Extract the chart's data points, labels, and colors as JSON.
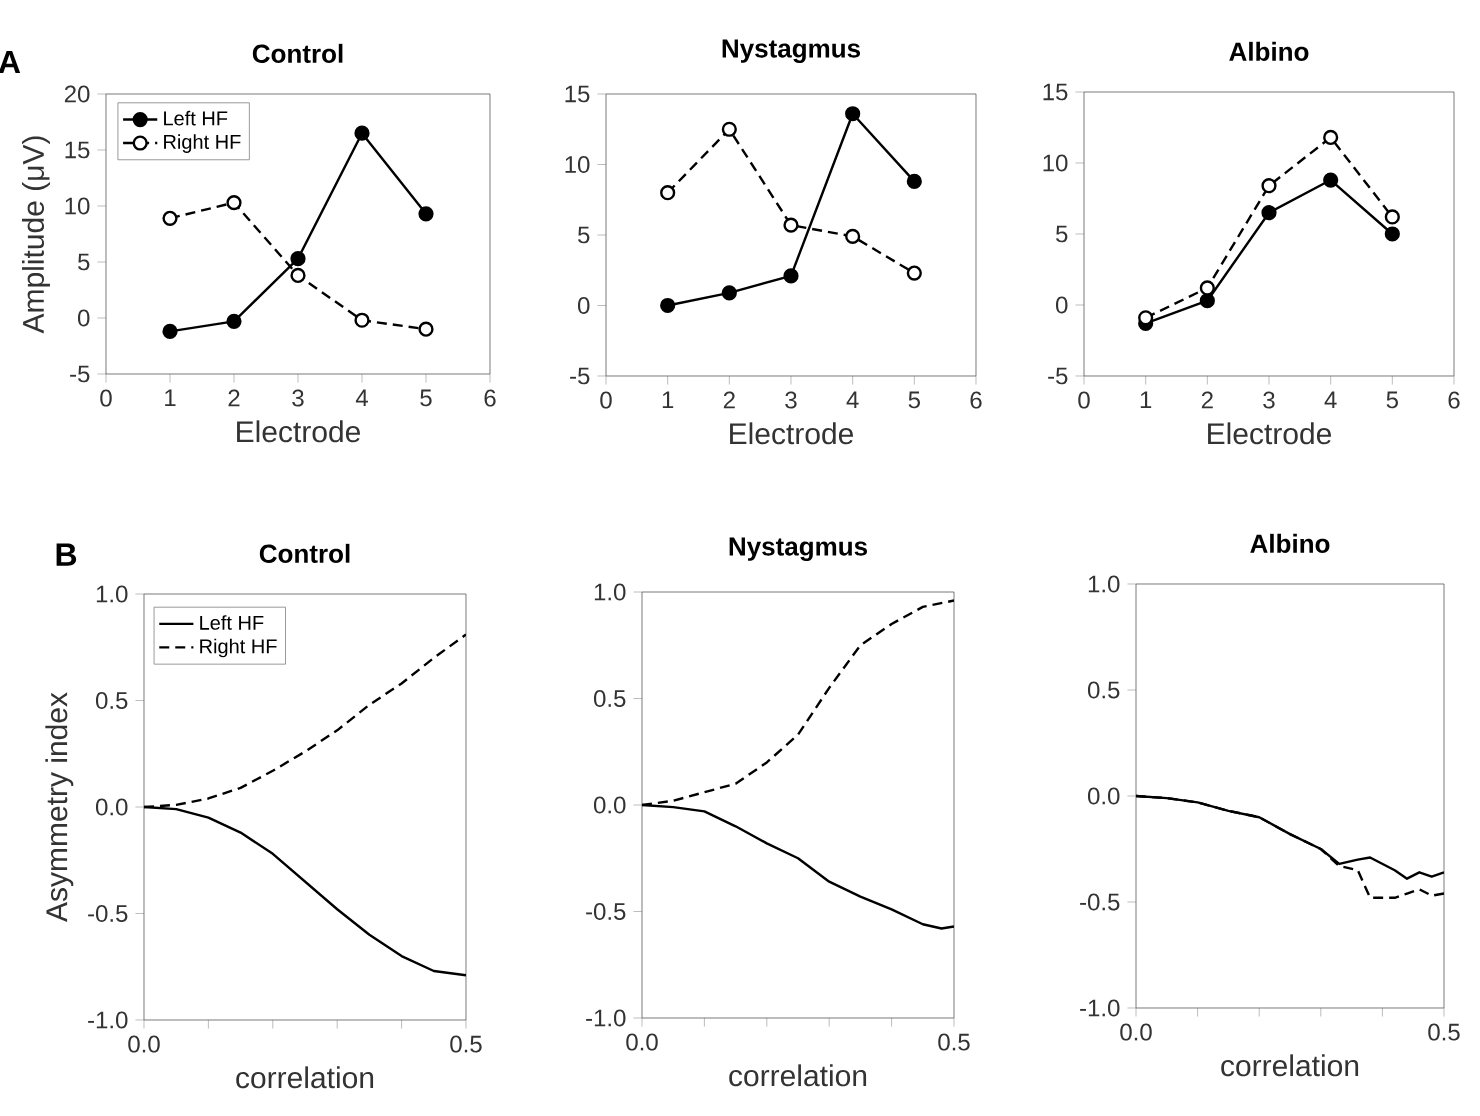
{
  "chart_data": [
    {
      "type": "line",
      "title": "Control",
      "xlabel": "Electrode",
      "ylabel": "Amplitude (μV)",
      "annotations": [
        "A"
      ],
      "xlim": [
        0,
        6
      ],
      "xticks": [
        0,
        1,
        2,
        3,
        4,
        5,
        6
      ],
      "ylim": [
        -5,
        20
      ],
      "yticks": [
        -5,
        0,
        5,
        10,
        15,
        20
      ],
      "legend": "top left",
      "x": [
        1,
        2,
        3,
        4,
        5
      ],
      "series": [
        {
          "name": "Left HF",
          "color": "#000000",
          "marker": "circle",
          "line_style": "solid",
          "values": [
            -1.2,
            -0.3,
            5.3,
            16.5,
            9.3
          ]
        },
        {
          "name": "Right HF",
          "color": "#000000",
          "marker": "circle",
          "line_style": "dashed",
          "values": [
            8.9,
            10.3,
            3.8,
            -0.2,
            -1.0
          ]
        }
      ]
    },
    {
      "type": "line",
      "title": "Nystagmus",
      "xlabel": "Electrode",
      "xlim": [
        0,
        6
      ],
      "xticks": [
        0,
        1,
        2,
        3,
        4,
        5,
        6
      ],
      "ylim": [
        -5,
        15
      ],
      "yticks": [
        -5,
        0,
        5,
        10,
        15
      ],
      "x": [
        1,
        2,
        3,
        4,
        5
      ],
      "series": [
        {
          "color": "#000000",
          "marker": "circle",
          "line_style": "solid",
          "values": [
            0.0,
            0.9,
            2.1,
            13.6,
            8.8
          ]
        },
        {
          "color": "#000000",
          "marker": "circle",
          "line_style": "dashed",
          "values": [
            8.0,
            12.5,
            5.7,
            4.9,
            2.3
          ]
        }
      ]
    },
    {
      "type": "line",
      "title": "Albino",
      "xlabel": "Electrode",
      "xlim": [
        0,
        6
      ],
      "xticks": [
        0,
        1,
        2,
        3,
        4,
        5,
        6
      ],
      "ylim": [
        -5,
        15
      ],
      "yticks": [
        -5,
        0,
        5,
        10,
        15
      ],
      "x": [
        1,
        2,
        3,
        4,
        5
      ],
      "series": [
        {
          "color": "#000000",
          "marker": "circle",
          "line_style": "solid",
          "values": [
            -1.3,
            0.3,
            6.5,
            8.8,
            5.0
          ]
        },
        {
          "color": "#000000",
          "marker": "circle",
          "line_style": "dashed",
          "values": [
            -0.9,
            1.2,
            8.4,
            11.8,
            6.2
          ]
        }
      ]
    },
    {
      "type": "line",
      "title": "Control",
      "xlabel": "correlation",
      "ylabel": "Asymmetry index",
      "annotations": [
        "B"
      ],
      "xlim": [
        0,
        0.5
      ],
      "xticks": [
        {
          "value": 0,
          "label": "0.0"
        },
        {
          "value": 0.1,
          "label": null
        },
        {
          "value": 0.2,
          "label": null
        },
        {
          "value": 0.3,
          "label": null
        },
        {
          "value": 0.4,
          "label": null
        },
        {
          "value": 0.5,
          "label": "0.5"
        }
      ],
      "ylim": [
        -1,
        1
      ],
      "yticks": [
        {
          "value": -1,
          "label": "-1.0"
        },
        {
          "value": -0.5,
          "label": "-0.5"
        },
        {
          "value": 0,
          "label": "0.0"
        },
        {
          "value": 0.5,
          "label": "0.5"
        },
        {
          "value": 1,
          "label": "1.0"
        }
      ],
      "legend": "top left",
      "x": [
        0,
        0.05,
        0.1,
        0.15,
        0.2,
        0.25,
        0.3,
        0.35,
        0.4,
        0.45,
        0.5
      ],
      "series": [
        {
          "name": "Left HF",
          "color": "#000000",
          "line_style": "solid",
          "values": [
            0,
            -0.01,
            -0.05,
            -0.12,
            -0.22,
            -0.35,
            -0.48,
            -0.6,
            -0.7,
            -0.77,
            -0.79
          ]
        },
        {
          "name": "Right HF",
          "color": "#000000",
          "line_style": "dashed",
          "values": [
            0,
            0.01,
            0.04,
            0.09,
            0.17,
            0.26,
            0.36,
            0.48,
            0.58,
            0.7,
            0.81
          ]
        }
      ]
    },
    {
      "type": "line",
      "title": "Nystagmus",
      "xlabel": "correlation",
      "xlim": [
        0,
        0.5
      ],
      "xticks": [
        {
          "value": 0,
          "label": "0.0"
        },
        {
          "value": 0.1,
          "label": null
        },
        {
          "value": 0.2,
          "label": null
        },
        {
          "value": 0.3,
          "label": null
        },
        {
          "value": 0.4,
          "label": null
        },
        {
          "value": 0.5,
          "label": "0.5"
        }
      ],
      "ylim": [
        -1,
        1
      ],
      "yticks": [
        {
          "value": -1,
          "label": "-1.0"
        },
        {
          "value": -0.5,
          "label": "-0.5"
        },
        {
          "value": 0,
          "label": "0.0"
        },
        {
          "value": 0.5,
          "label": "0.5"
        },
        {
          "value": 1,
          "label": "1.0"
        }
      ],
      "series": [
        {
          "color": "#000000",
          "line_style": "solid",
          "x": [
            0,
            0.05,
            0.1,
            0.15,
            0.2,
            0.25,
            0.3,
            0.35,
            0.4,
            0.45,
            0.48,
            0.5
          ],
          "values": [
            0,
            -0.01,
            -0.03,
            -0.1,
            -0.18,
            -0.25,
            -0.36,
            -0.43,
            -0.49,
            -0.56,
            -0.58,
            -0.57
          ]
        },
        {
          "color": "#000000",
          "line_style": "dashed",
          "x": [
            0,
            0.05,
            0.1,
            0.15,
            0.2,
            0.25,
            0.3,
            0.35,
            0.4,
            0.45,
            0.5
          ],
          "values": [
            0,
            0.02,
            0.06,
            0.1,
            0.2,
            0.33,
            0.55,
            0.75,
            0.85,
            0.93,
            0.96
          ]
        }
      ]
    },
    {
      "type": "line",
      "title": "Albino",
      "xlabel": "correlation",
      "xlim": [
        0,
        0.5
      ],
      "xticks": [
        {
          "value": 0,
          "label": "0.0"
        },
        {
          "value": 0.1,
          "label": null
        },
        {
          "value": 0.2,
          "label": null
        },
        {
          "value": 0.3,
          "label": null
        },
        {
          "value": 0.4,
          "label": null
        },
        {
          "value": 0.5,
          "label": "0.5"
        }
      ],
      "ylim": [
        -1,
        1
      ],
      "yticks": [
        {
          "value": -1,
          "label": "-1.0"
        },
        {
          "value": -0.5,
          "label": "-0.5"
        },
        {
          "value": 0,
          "label": "0.0"
        },
        {
          "value": 0.5,
          "label": "0.5"
        },
        {
          "value": 1,
          "label": "1.0"
        }
      ],
      "x": [
        0,
        0.05,
        0.1,
        0.15,
        0.2,
        0.25,
        0.3,
        0.33,
        0.36,
        0.38,
        0.42,
        0.44,
        0.46,
        0.48,
        0.5
      ],
      "series": [
        {
          "color": "#000000",
          "line_style": "solid",
          "values": [
            0,
            -0.01,
            -0.03,
            -0.07,
            -0.1,
            -0.18,
            -0.25,
            -0.32,
            -0.3,
            -0.29,
            -0.35,
            -0.39,
            -0.36,
            -0.38,
            -0.36
          ]
        },
        {
          "color": "#000000",
          "line_style": "dashed",
          "values": [
            0,
            -0.01,
            -0.03,
            -0.07,
            -0.1,
            -0.18,
            -0.25,
            -0.33,
            -0.35,
            -0.48,
            -0.48,
            -0.46,
            -0.44,
            -0.47,
            -0.46
          ]
        }
      ]
    }
  ]
}
